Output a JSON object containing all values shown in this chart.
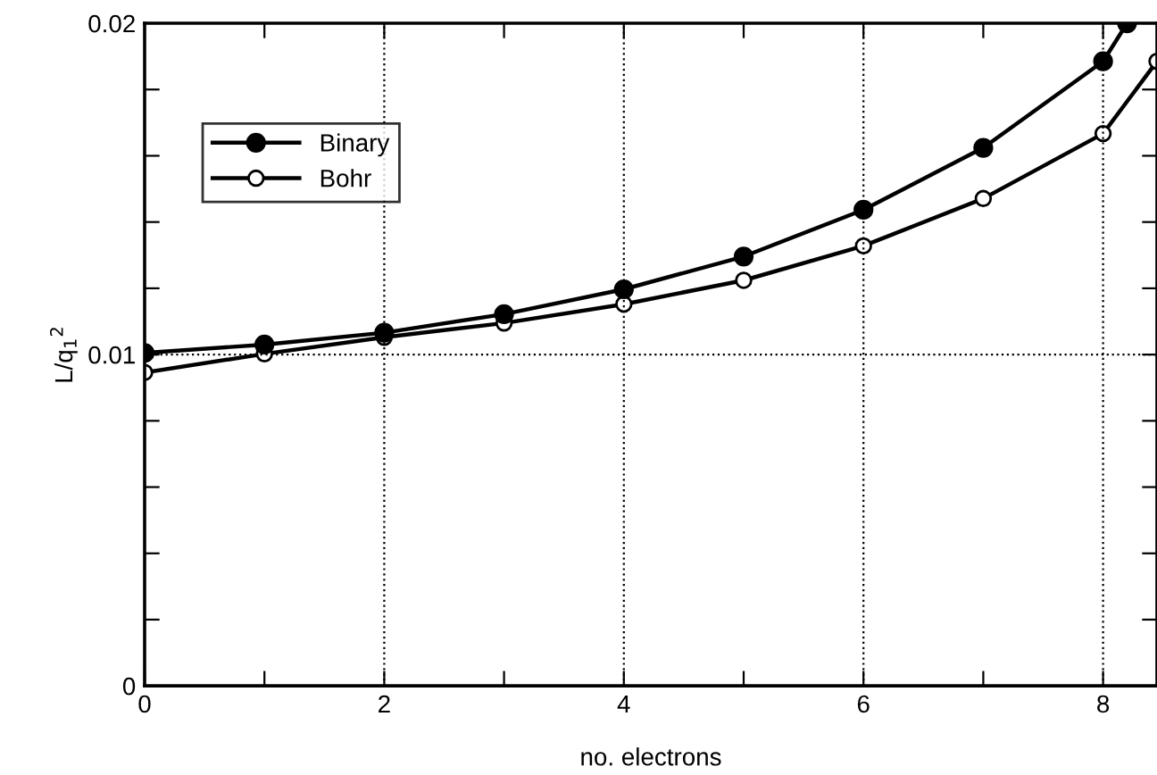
{
  "chart_data": {
    "type": "line",
    "xlabel": "no. electrons",
    "ylabel": "L/q$_{1}$$^{2}$",
    "xlim": [
      0,
      8.45
    ],
    "ylim": [
      0,
      0.02
    ],
    "xticks": [
      0,
      {
        "value": 1,
        "label": null
      },
      2,
      {
        "value": 3,
        "label": null
      },
      4,
      {
        "value": 5,
        "label": null
      },
      6,
      {
        "value": 7,
        "label": null
      },
      8
    ],
    "yticks": [
      0,
      {
        "value": 0.002,
        "label": null
      },
      {
        "value": 0.004,
        "label": null
      },
      {
        "value": 0.006,
        "label": null
      },
      {
        "value": 0.008,
        "label": null
      },
      0.01,
      {
        "value": 0.012,
        "label": null
      },
      {
        "value": 0.014,
        "label": null
      },
      {
        "value": 0.016,
        "label": null
      },
      {
        "value": 0.018,
        "label": null
      },
      0.02
    ],
    "grid": true,
    "legend": "top left",
    "marker": "circle",
    "line_style": "solid",
    "series": [
      {
        "name": "Binary",
        "color": "#000000",
        "x": [
          0,
          1,
          2,
          3,
          4,
          5,
          6,
          7,
          8,
          8.2
        ],
        "values": [
          0.01005,
          0.0103,
          0.01066,
          0.01122,
          0.01197,
          0.01296,
          0.01437,
          0.01624,
          0.01885,
          0.02
        ]
      },
      {
        "name": "Bohr",
        "color": "#000000",
        "x": [
          0,
          1,
          2,
          3,
          4,
          5,
          6,
          7,
          8,
          8.45
        ],
        "values": [
          0.00946,
          0.01002,
          0.01052,
          0.01095,
          0.01152,
          0.01224,
          0.01328,
          0.01471,
          0.01667,
          0.01885
        ]
      }
    ]
  }
}
